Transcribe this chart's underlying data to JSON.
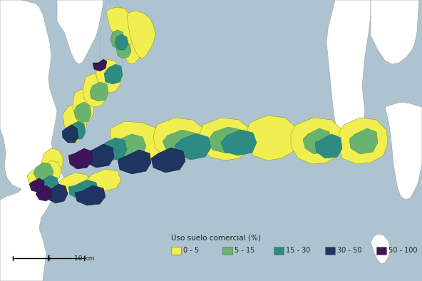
{
  "background_color": "#b8cfd8",
  "water_color": "#adc4d0",
  "land_outside_color": "#ffffff",
  "legend_title": "Uso suelo comercial (%)",
  "legend_categories": [
    {
      "label": "0 - 5",
      "color": "#f0ef4f"
    },
    {
      "label": "5 - 15",
      "color": "#6ab36e"
    },
    {
      "label": "15 - 30",
      "color": "#2e8b84"
    },
    {
      "label": "30 - 50",
      "color": "#1e3461"
    },
    {
      "label": "50 - 100",
      "color": "#3d1558"
    }
  ],
  "scalebar_label_5": "5",
  "scalebar_label_10": "10 km",
  "legend_title_fontsize": 7.5,
  "legend_label_fontsize": 7,
  "scale_fontsize": 6.5,
  "figsize": [
    5.92,
    3.94
  ],
  "dpi": 100
}
